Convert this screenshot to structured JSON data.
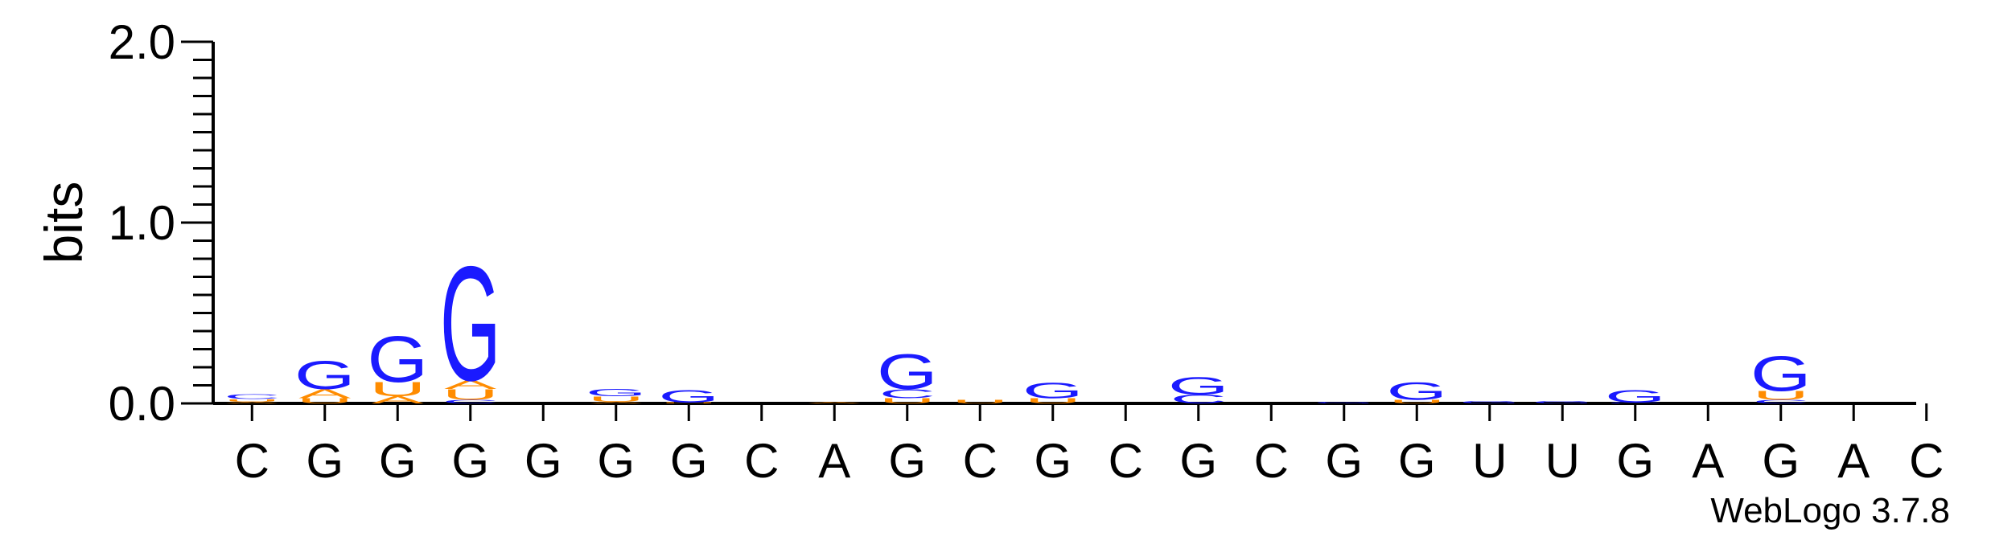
{
  "chart_data": {
    "type": "sequence-logo",
    "ylabel": "bits",
    "ylim": [
      0,
      2.0
    ],
    "yticks": [
      "0.0",
      "1.0",
      "2.0"
    ],
    "sequence": [
      "C",
      "G",
      "G",
      "G",
      "G",
      "G",
      "G",
      "C",
      "A",
      "G",
      "C",
      "G",
      "C",
      "G",
      "C",
      "G",
      "G",
      "U",
      "U",
      "G",
      "A",
      "G",
      "A",
      "C"
    ],
    "colors": {
      "G": "#1a1aff",
      "C": "#1a1aff",
      "A": "#ff8c00",
      "U": "#ff8c00"
    },
    "stacks": [
      [
        [
          "A",
          0.01
        ],
        [
          "U",
          0.015
        ],
        [
          "C",
          0.025
        ]
      ],
      [
        [
          "U",
          0.03
        ],
        [
          "A",
          0.05
        ],
        [
          "G",
          0.16
        ]
      ],
      [
        [
          "A",
          0.04
        ],
        [
          "U",
          0.08
        ],
        [
          "G",
          0.26
        ]
      ],
      [
        [
          "C",
          0.02
        ],
        [
          "U",
          0.06
        ],
        [
          "A",
          0.05
        ],
        [
          "G",
          0.65
        ]
      ],
      [],
      [
        [
          "A",
          0.01
        ],
        [
          "U",
          0.03
        ],
        [
          "G",
          0.04
        ]
      ],
      [
        [
          "U",
          0.005
        ],
        [
          "G",
          0.07
        ]
      ],
      [],
      [
        [
          "A",
          0.01
        ]
      ],
      [
        [
          "U",
          0.03
        ],
        [
          "C",
          0.05
        ],
        [
          "G",
          0.2
        ]
      ],
      [
        [
          "U",
          0.02
        ]
      ],
      [
        [
          "U",
          0.03
        ],
        [
          "G",
          0.09
        ]
      ],
      [],
      [
        [
          "C",
          0.05
        ],
        [
          "G",
          0.1
        ]
      ],
      [],
      [
        [
          "G",
          0.01
        ]
      ],
      [
        [
          "U",
          0.02
        ],
        [
          "G",
          0.1
        ]
      ],
      [
        [
          "G",
          0.015
        ]
      ],
      [
        [
          "G",
          0.015
        ]
      ],
      [
        [
          "C",
          0.005
        ],
        [
          "G",
          0.07
        ]
      ],
      [],
      [
        [
          "C",
          0.02
        ],
        [
          "U",
          0.05
        ],
        [
          "G",
          0.2
        ]
      ],
      [],
      []
    ]
  },
  "credit": "WebLogo 3.7.8"
}
